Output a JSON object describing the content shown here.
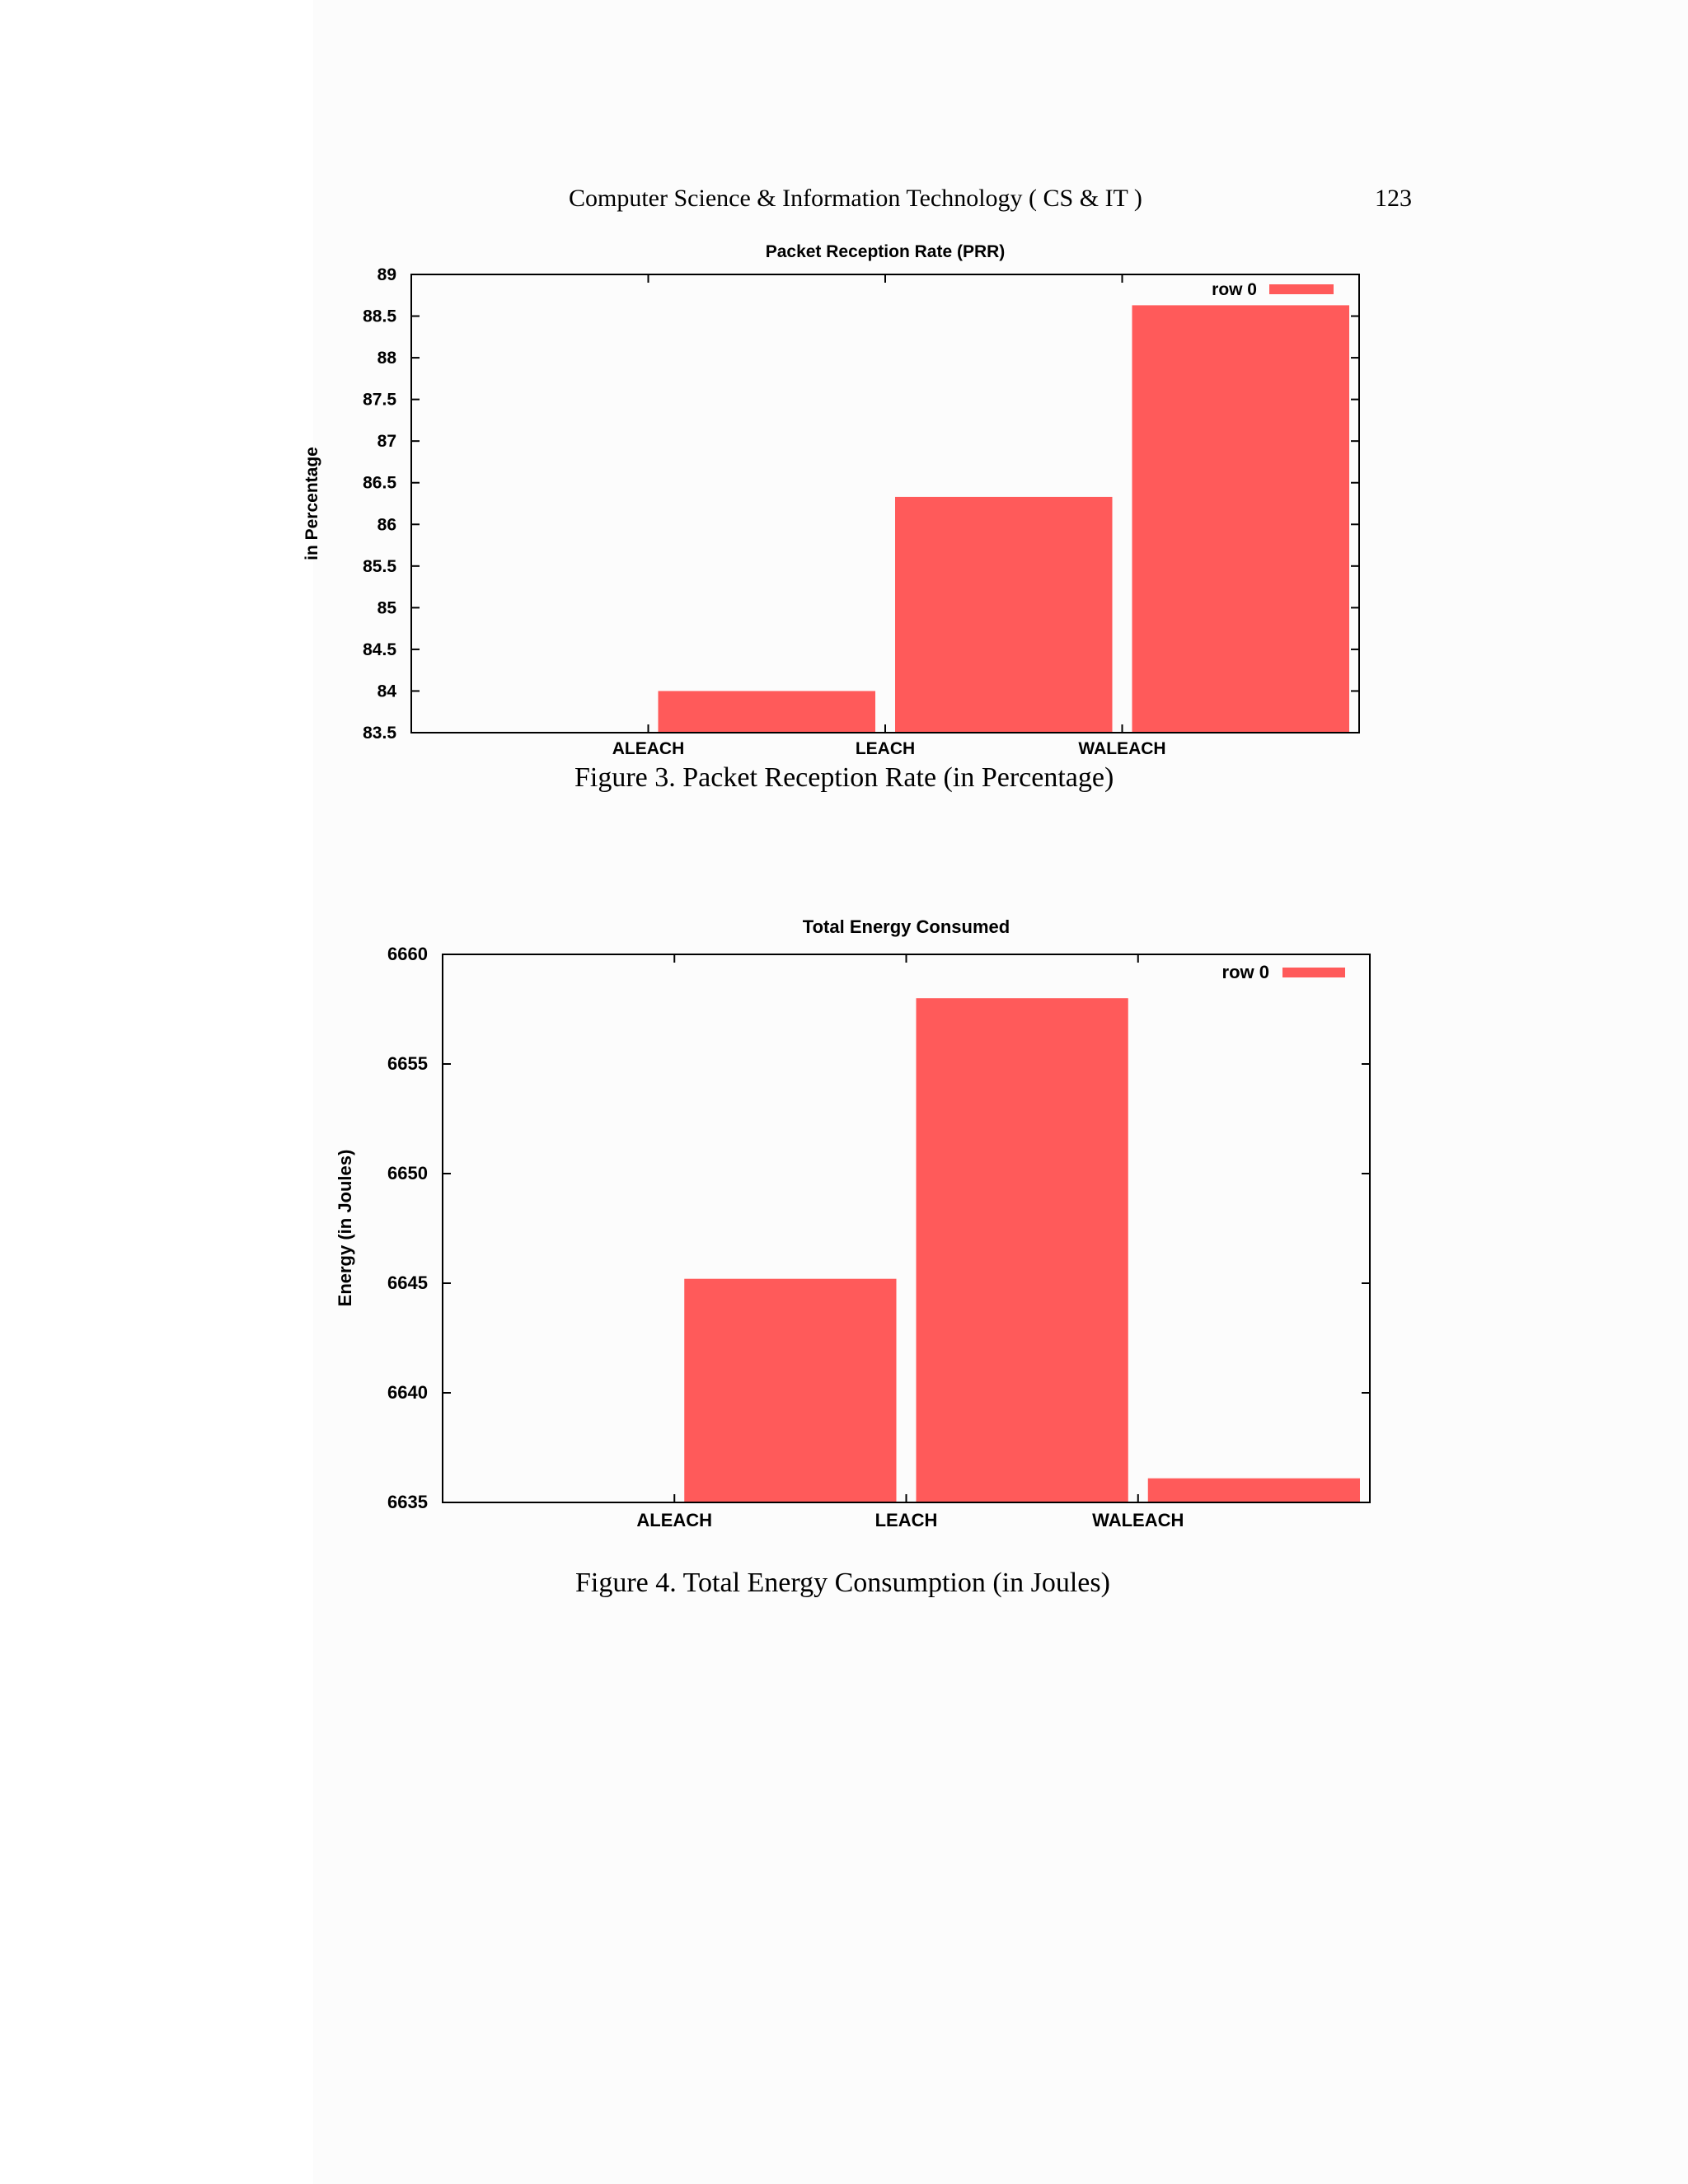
{
  "header": {
    "title": "Computer Science & Information Technology ( CS & IT )",
    "page_number": "123"
  },
  "figures": [
    {
      "caption": "Figure 3.  Packet Reception Rate (in Percentage)"
    },
    {
      "caption": "Figure 4.  Total Energy Consumption (in Joules)"
    }
  ],
  "colors": {
    "bar": "#ff5a5a",
    "axis": "#000000"
  },
  "chart_data": [
    {
      "type": "bar",
      "title": "Packet Reception Rate (PRR)",
      "xlabel": "",
      "ylabel": "in Percentage",
      "categories": [
        "ALEACH",
        "LEACH",
        "WALEACH"
      ],
      "series": [
        {
          "name": "row 0",
          "values": [
            84.0,
            86.33,
            88.63
          ]
        }
      ],
      "ylim": [
        83.5,
        89
      ],
      "yticks": [
        "89",
        "88.5",
        "88",
        "87.5",
        "87",
        "86.5",
        "86",
        "85.5",
        "85",
        "84.5",
        "84",
        "83.5"
      ],
      "legend": "top-right",
      "grid": false
    },
    {
      "type": "bar",
      "title": "Total Energy Consumed",
      "xlabel": "",
      "ylabel": "Energy (in Joules)",
      "categories": [
        "ALEACH",
        "LEACH",
        "WALEACH"
      ],
      "series": [
        {
          "name": "row 0",
          "values": [
            6645.2,
            6658.0,
            6636.1
          ]
        }
      ],
      "ylim": [
        6635,
        6660
      ],
      "yticks": [
        "6660",
        "6655",
        "6650",
        "6645",
        "6640",
        "6635"
      ],
      "legend": "top-right",
      "grid": false
    }
  ]
}
